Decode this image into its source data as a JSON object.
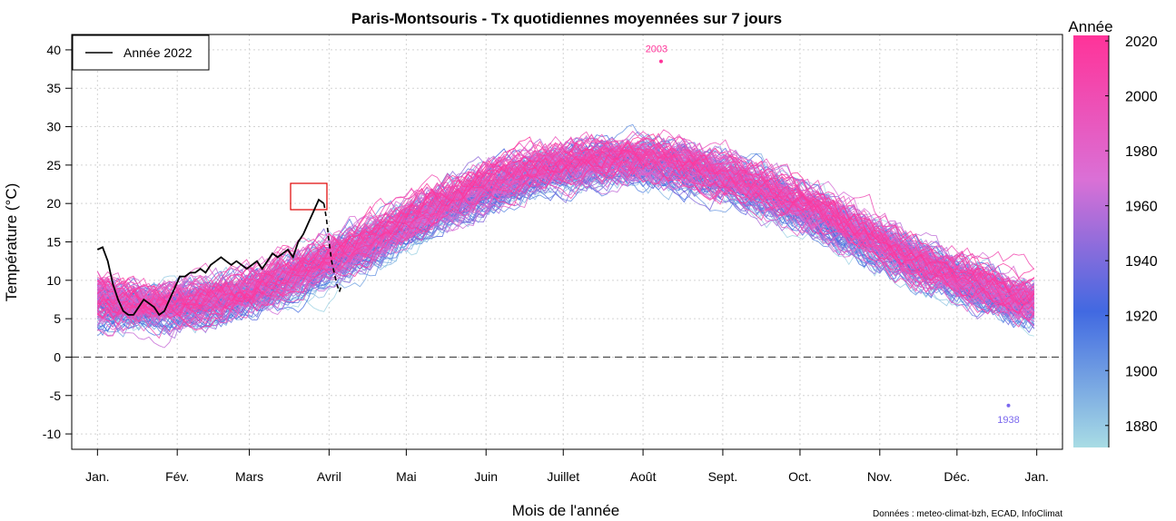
{
  "chart_data": {
    "type": "line",
    "title": "Paris-Montsouris - Tx quotidiennes moyennées sur 7 jours",
    "xlabel": "Mois de l'année",
    "ylabel": "Température (°C)",
    "ylim": [
      -12,
      42
    ],
    "yticks": [
      -10,
      -5,
      0,
      5,
      10,
      15,
      20,
      25,
      30,
      35,
      40
    ],
    "xticks": [
      {
        "label": "Jan.",
        "day": 1
      },
      {
        "label": "Fév.",
        "day": 32
      },
      {
        "label": "Mars",
        "day": 60
      },
      {
        "label": "Avril",
        "day": 91
      },
      {
        "label": "Mai",
        "day": 121
      },
      {
        "label": "Juin",
        "day": 152
      },
      {
        "label": "Juillet",
        "day": 182
      },
      {
        "label": "Août",
        "day": 213
      },
      {
        "label": "Sept.",
        "day": 244
      },
      {
        "label": "Oct.",
        "day": 274
      },
      {
        "label": "Nov.",
        "day": 305
      },
      {
        "label": "Déc.",
        "day": 335
      },
      {
        "label": "Jan.",
        "day": 366
      }
    ],
    "xlim": [
      -9,
      376
    ],
    "legend": {
      "label": "Année 2022",
      "placement": "top-left"
    },
    "colorbar": {
      "title": "Année",
      "range": [
        1872,
        2022
      ],
      "ticks": [
        1880,
        1900,
        1920,
        1940,
        1960,
        1980,
        2000,
        2020
      ],
      "colors": [
        "#a8dce4",
        "#4169e1",
        "#da70d6",
        "#ff3399"
      ]
    },
    "climatology": {
      "description_free": true,
      "mean_min": 6.5,
      "mean_max": 25.5,
      "peak_day": 205,
      "year_range": [
        1872,
        2021
      ]
    },
    "series_2022_solid": {
      "x": [
        1,
        3,
        5,
        7,
        9,
        11,
        13,
        15,
        17,
        19,
        21,
        23,
        25,
        27,
        29,
        31,
        33,
        35,
        37,
        39,
        41,
        43,
        45,
        47,
        49,
        51,
        53,
        55,
        57,
        59,
        61,
        63,
        65,
        67,
        69,
        71,
        73,
        75,
        77,
        79,
        81,
        83,
        85,
        87,
        89
      ],
      "y": [
        14.0,
        14.3,
        12.5,
        9.5,
        7.5,
        6.0,
        5.5,
        5.5,
        6.5,
        7.5,
        7.0,
        6.5,
        5.5,
        6.0,
        7.5,
        9.0,
        10.5,
        10.5,
        11.0,
        11.0,
        11.5,
        11.0,
        12.0,
        12.5,
        13.0,
        12.5,
        12.0,
        12.5,
        12.0,
        11.5,
        12.0,
        12.5,
        11.5,
        12.5,
        13.5,
        13.0,
        13.5,
        14.0,
        13.0,
        15.0,
        16.0,
        17.5,
        19.0,
        20.5,
        20.0
      ]
    },
    "series_2022_dashed": {
      "x": [
        89,
        90,
        91,
        92,
        93,
        94,
        95,
        96
      ],
      "y": [
        20.0,
        18.0,
        15.0,
        12.5,
        11.0,
        9.5,
        8.5,
        9.5
      ]
    },
    "annotations": [
      {
        "label": "2003",
        "day": 220,
        "value": 38.5,
        "color": "#ff3399"
      },
      {
        "label": "1938",
        "day": 355,
        "value": -6.3,
        "color": "#7b68ee"
      }
    ],
    "source": "Données : meteo-climat-bzh, ECAD, InfoClimat"
  }
}
